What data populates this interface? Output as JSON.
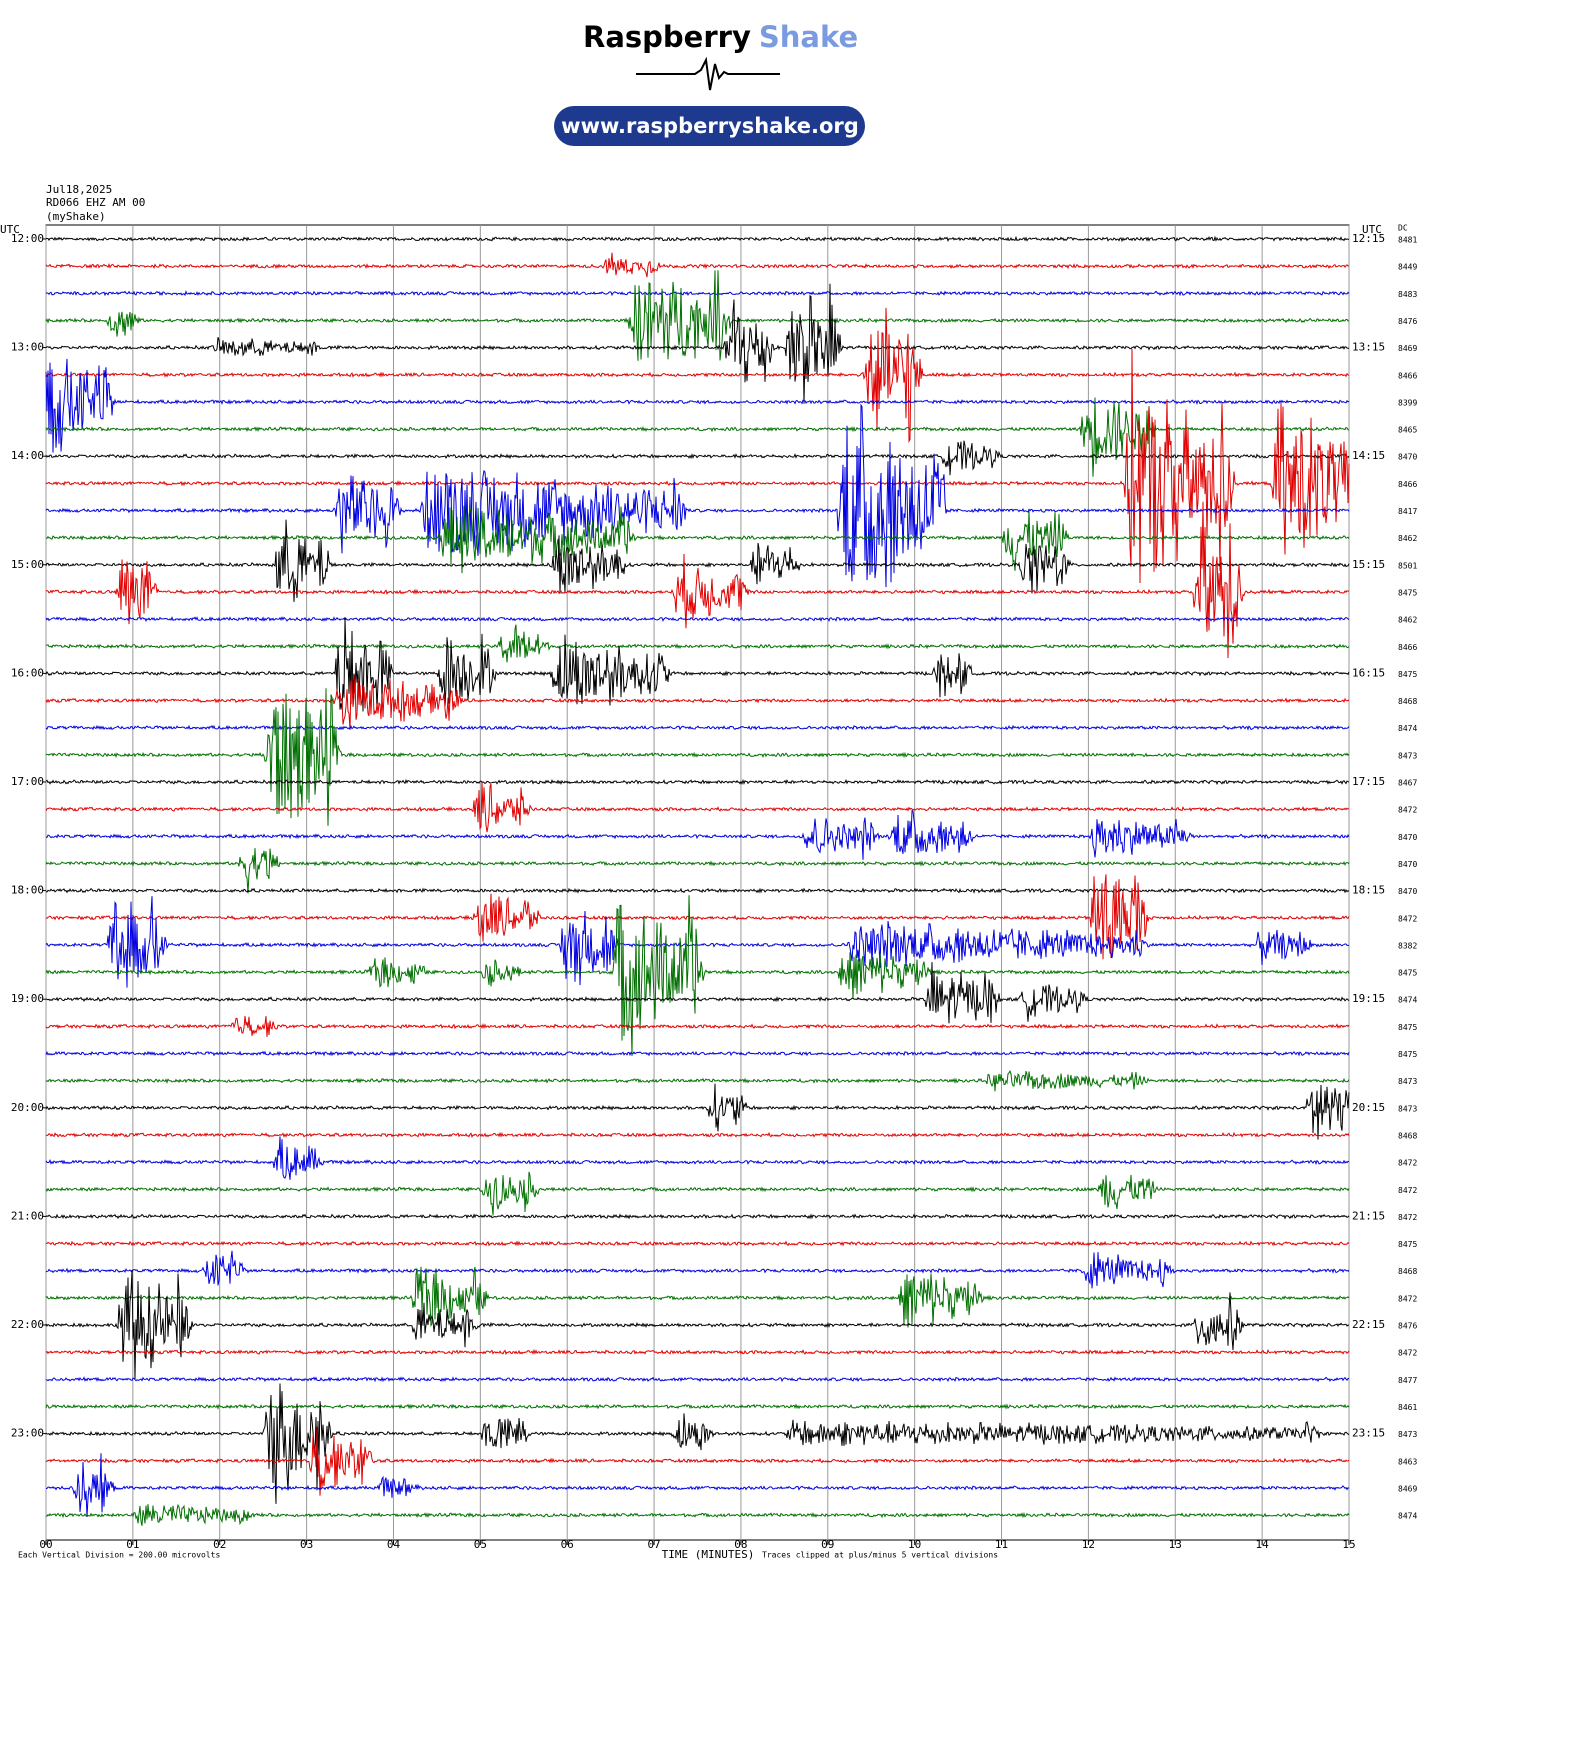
{
  "header": {
    "brand": "Raspberry",
    "brand_accent": "Shake",
    "url": "www.raspberryshake.org"
  },
  "chart_data": {
    "type": "helicorder",
    "date": "Jul18,2025",
    "station": "RD066 EHZ AM 00",
    "source": "(myShake)",
    "utc_label": "UTC",
    "dc_label": "DC",
    "xlabel": "TIME (MINUTES)",
    "footnote_left": "Each Vertical Division =  200.00 microvolts",
    "footnote_right": "Traces clipped at plus/minus 5 vertical divisions",
    "xlim": [
      0,
      15
    ],
    "xticks": [
      {
        "value": 0,
        "label": "00"
      },
      {
        "value": 1,
        "label": "01"
      },
      {
        "value": 2,
        "label": "02"
      },
      {
        "value": 3,
        "label": "03"
      },
      {
        "value": 4,
        "label": "04"
      },
      {
        "value": 5,
        "label": "05"
      },
      {
        "value": 6,
        "label": "06"
      },
      {
        "value": 7,
        "label": "07"
      },
      {
        "value": 8,
        "label": "08"
      },
      {
        "value": 9,
        "label": "09"
      },
      {
        "value": 10,
        "label": "10"
      },
      {
        "value": 11,
        "label": "11"
      },
      {
        "value": 12,
        "label": "12"
      },
      {
        "value": 13,
        "label": "13"
      },
      {
        "value": 14,
        "label": "14"
      },
      {
        "value": 15,
        "label": "15"
      }
    ],
    "clip": 5,
    "colors": [
      "#000000",
      "#e00000",
      "#0000e0",
      "#007000"
    ],
    "hours_left": [
      "12:00",
      "13:00",
      "14:00",
      "15:00",
      "16:00",
      "17:00",
      "18:00",
      "19:00",
      "20:00",
      "21:00",
      "22:00",
      "23:00"
    ],
    "hours_right": [
      "12:15",
      "13:15",
      "14:15",
      "15:15",
      "16:15",
      "17:15",
      "18:15",
      "19:15",
      "20:15",
      "21:15",
      "22:15",
      "23:15"
    ],
    "rows": [
      {
        "dc": "8481",
        "events": []
      },
      {
        "dc": "8449",
        "events": [
          [
            6.5,
            6.9,
            0.5
          ]
        ]
      },
      {
        "dc": "8483",
        "events": []
      },
      {
        "dc": "8476",
        "events": [
          [
            6.8,
            7.7,
            2.5
          ],
          [
            0.8,
            0.9,
            1
          ]
        ]
      },
      {
        "dc": "8469",
        "events": [
          [
            2.0,
            3.0,
            0.4
          ],
          [
            7.9,
            8.2,
            2.5
          ],
          [
            8.6,
            9.0,
            3
          ]
        ]
      },
      {
        "dc": "8466",
        "events": [
          [
            9.5,
            9.9,
            3.5
          ]
        ]
      },
      {
        "dc": "8399",
        "events": [
          [
            0.05,
            0.6,
            2.5
          ]
        ]
      },
      {
        "dc": "8465",
        "events": [
          [
            12.0,
            12.6,
            2
          ]
        ]
      },
      {
        "dc": "8470",
        "events": [
          [
            10.4,
            10.8,
            0.8
          ]
        ]
      },
      {
        "dc": "8466",
        "events": [
          [
            12.5,
            13.5,
            5
          ],
          [
            14.2,
            15,
            4
          ]
        ]
      },
      {
        "dc": "8417",
        "events": [
          [
            4.4,
            7.2,
            2
          ],
          [
            9.2,
            10.2,
            5
          ],
          [
            3.4,
            3.9,
            2
          ]
        ]
      },
      {
        "dc": "8462",
        "events": [
          [
            4.6,
            6.6,
            1.5
          ],
          [
            11.1,
            11.6,
            1.5
          ]
        ]
      },
      {
        "dc": "8501",
        "events": [
          [
            2.7,
            3.1,
            2
          ],
          [
            5.9,
            6.5,
            1.5
          ],
          [
            8.2,
            8.5,
            1.2
          ],
          [
            11.3,
            11.6,
            1.5
          ]
        ]
      },
      {
        "dc": "8475",
        "events": [
          [
            0.9,
            1.1,
            2
          ],
          [
            7.3,
            7.9,
            1.5
          ],
          [
            13.3,
            13.6,
            4
          ]
        ]
      },
      {
        "dc": "8462",
        "events": []
      },
      {
        "dc": "8466",
        "events": [
          [
            5.3,
            5.6,
            1.2
          ]
        ]
      },
      {
        "dc": "8475",
        "events": [
          [
            3.4,
            3.8,
            2.5
          ],
          [
            4.6,
            5.0,
            2
          ],
          [
            5.9,
            7.0,
            1.8
          ],
          [
            10.3,
            10.5,
            1
          ]
        ]
      },
      {
        "dc": "8468",
        "events": [
          [
            3.4,
            4.6,
            1.2
          ]
        ]
      },
      {
        "dc": "8474",
        "events": []
      },
      {
        "dc": "8473",
        "events": [
          [
            2.6,
            3.2,
            4
          ]
        ]
      },
      {
        "dc": "8467",
        "events": []
      },
      {
        "dc": "8472",
        "events": [
          [
            5.0,
            5.4,
            1.2
          ]
        ]
      },
      {
        "dc": "8470",
        "events": [
          [
            8.8,
            9.4,
            1
          ],
          [
            9.8,
            10.5,
            1.2
          ],
          [
            12.1,
            13.0,
            1
          ]
        ]
      },
      {
        "dc": "8470",
        "events": [
          [
            2.3,
            2.5,
            1.2
          ]
        ]
      },
      {
        "dc": "8470",
        "events": []
      },
      {
        "dc": "8472",
        "events": [
          [
            5.0,
            5.5,
            1.2
          ],
          [
            12.1,
            12.5,
            3
          ]
        ]
      },
      {
        "dc": "8382",
        "events": [
          [
            0.8,
            1.2,
            2.5
          ],
          [
            6.0,
            6.4,
            2
          ],
          [
            9.3,
            12.5,
            1
          ],
          [
            14.0,
            14.4,
            0.8
          ]
        ]
      },
      {
        "dc": "8475",
        "events": [
          [
            3.8,
            4.2,
            0.7
          ],
          [
            6.6,
            7.4,
            3.5
          ],
          [
            9.2,
            10.0,
            1.2
          ],
          [
            5.1,
            5.3,
            0.6
          ]
        ]
      },
      {
        "dc": "8474",
        "events": [
          [
            10.2,
            10.8,
            1.5
          ],
          [
            11.3,
            11.8,
            0.8
          ]
        ]
      },
      {
        "dc": "8475",
        "events": [
          [
            2.2,
            2.5,
            0.5
          ]
        ]
      },
      {
        "dc": "8475",
        "events": []
      },
      {
        "dc": "8473",
        "events": [
          [
            10.9,
            12.5,
            0.4
          ]
        ]
      },
      {
        "dc": "8473",
        "events": [
          [
            7.7,
            7.9,
            1
          ],
          [
            14.6,
            15,
            2
          ]
        ]
      },
      {
        "dc": "8468",
        "events": []
      },
      {
        "dc": "8472",
        "events": [
          [
            2.7,
            3.0,
            1
          ]
        ]
      },
      {
        "dc": "8472",
        "events": [
          [
            5.1,
            5.5,
            1
          ],
          [
            12.2,
            12.6,
            1
          ]
        ]
      },
      {
        "dc": "8472",
        "events": []
      },
      {
        "dc": "8475",
        "events": []
      },
      {
        "dc": "8468",
        "events": [
          [
            1.9,
            2.1,
            1
          ],
          [
            12.0,
            12.8,
            0.8
          ]
        ]
      },
      {
        "dc": "8472",
        "events": [
          [
            4.3,
            4.9,
            1.5
          ],
          [
            9.9,
            10.6,
            1.5
          ]
        ]
      },
      {
        "dc": "8476",
        "events": [
          [
            0.9,
            1.5,
            2.5
          ],
          [
            4.3,
            4.8,
            1
          ],
          [
            13.3,
            13.6,
            1.5
          ]
        ]
      },
      {
        "dc": "8472",
        "events": []
      },
      {
        "dc": "8477",
        "events": []
      },
      {
        "dc": "8461",
        "events": []
      },
      {
        "dc": "8473",
        "events": [
          [
            2.6,
            3.1,
            3
          ],
          [
            5.1,
            5.4,
            1
          ],
          [
            7.3,
            7.5,
            1
          ],
          [
            8.6,
            14.5,
            0.5
          ]
        ]
      },
      {
        "dc": "8463",
        "events": [
          [
            3.1,
            3.6,
            1.5
          ]
        ]
      },
      {
        "dc": "8469",
        "events": [
          [
            0.4,
            0.6,
            1.5
          ],
          [
            3.9,
            4.1,
            0.5
          ]
        ]
      },
      {
        "dc": "8474",
        "events": [
          [
            1.1,
            2.2,
            0.5
          ]
        ]
      }
    ]
  }
}
